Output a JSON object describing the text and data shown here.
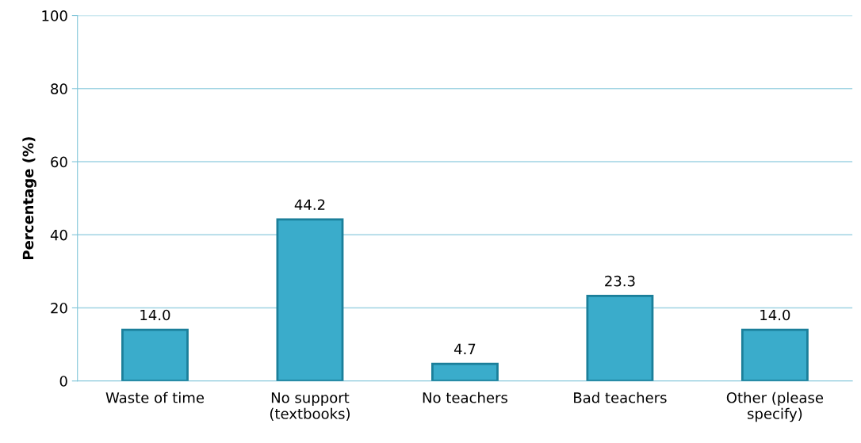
{
  "chart_data": {
    "type": "bar",
    "ylabel": "Percentage (%)",
    "categories": [
      "Waste of time",
      "No support\n(textbooks)",
      "No teachers",
      "Bad teachers",
      "Other (please\nspecify)"
    ],
    "values": [
      14.0,
      44.2,
      4.7,
      23.3,
      14.0
    ],
    "value_labels": [
      "14.0",
      "44.2",
      "4.7",
      "23.3",
      "14.0"
    ],
    "color": "#3aaccb",
    "ylim": [
      0,
      100
    ],
    "yticks": [
      0,
      20,
      40,
      60,
      80,
      100
    ],
    "grid": "y"
  }
}
